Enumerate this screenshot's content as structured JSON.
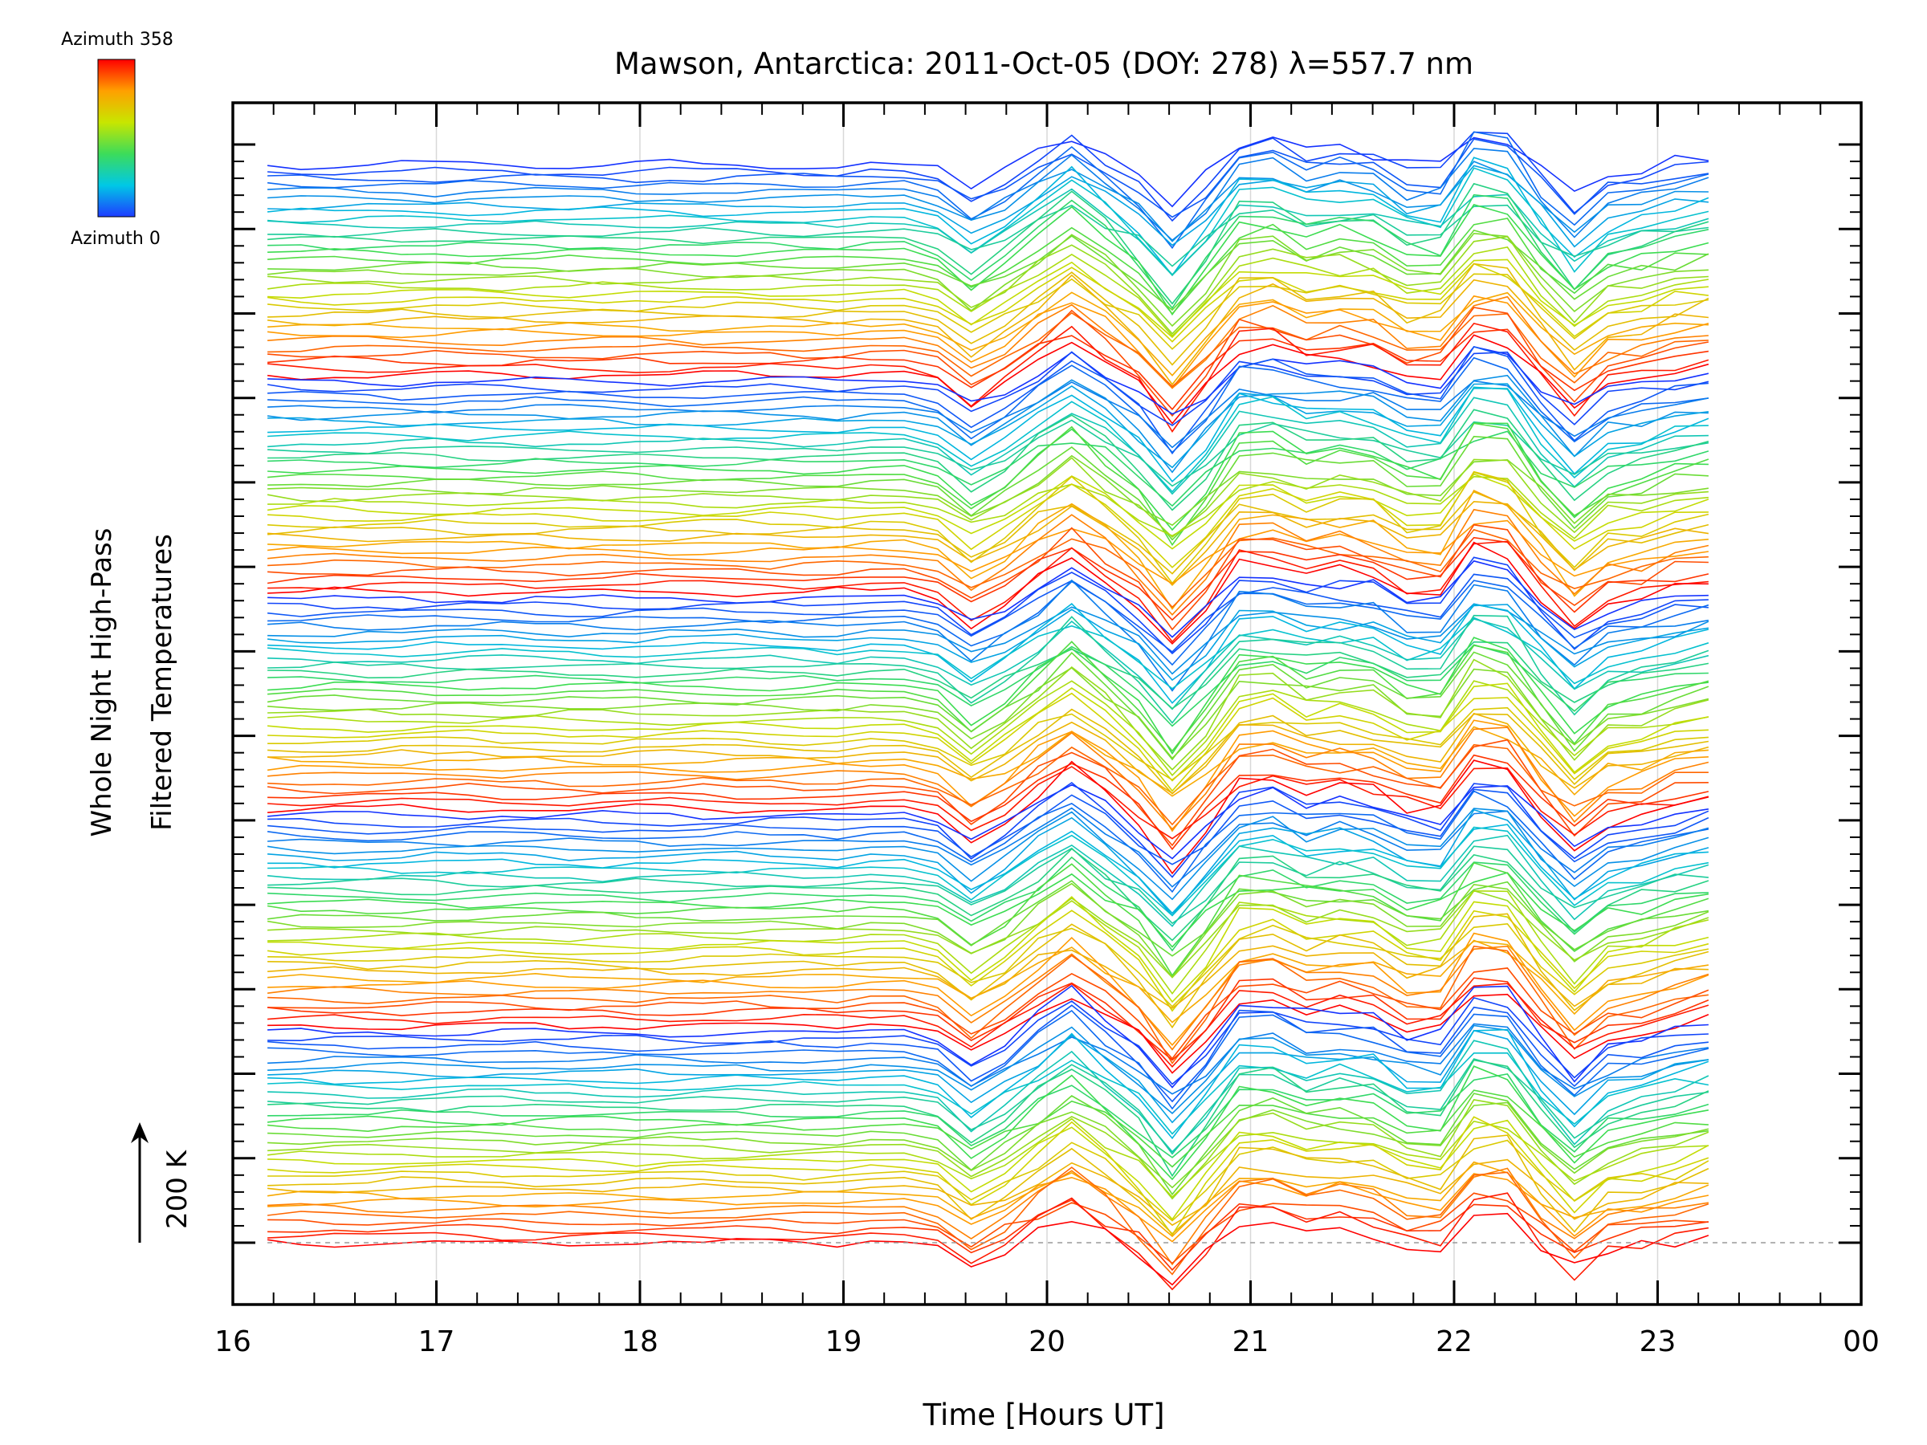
{
  "chart_data": {
    "type": "line",
    "title": "Mawson, Antarctica: 2011-Oct-05 (DOY: 278) λ=557.7 nm",
    "xlabel": "Time [Hours UT]",
    "ylabel_lines": [
      "Whole Night High-Pass",
      "Filtered Temperatures"
    ],
    "scale_label": "200 K",
    "x_ticks": [
      "16",
      "17",
      "18",
      "19",
      "20",
      "21",
      "22",
      "23",
      "00"
    ],
    "xlim": [
      16,
      24
    ],
    "x_start": 16.17,
    "x_end": 23.25,
    "n_points": 44,
    "grid": true,
    "baseline_dashed": true,
    "colorbar": {
      "top_label": "Azimuth 358",
      "bottom_label": "Azimuth 0",
      "colors": [
        "#ff0000",
        "#ffa000",
        "#c8dc00",
        "#50dc50",
        "#00c8c8",
        "#1e3cff"
      ]
    },
    "series_count": 160,
    "azimuth_cycle": 32,
    "cycles": 5,
    "disturbance_onset_hour": 19.0,
    "note_colors": {
      "red": "#ff0000",
      "yellow": "#c8c800",
      "green": "#3cd23c",
      "cyan": "#00b4dc",
      "blue": "#0a32ff"
    }
  }
}
